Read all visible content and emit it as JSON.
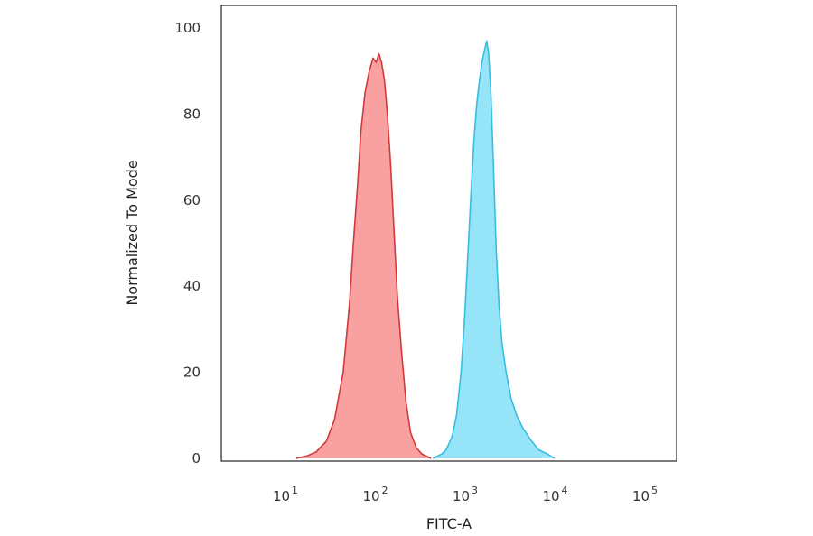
{
  "chart_data": {
    "type": "area",
    "xlabel": "FITC-A",
    "ylabel": "Normalized To Mode",
    "x_scale": "log10",
    "xlim": [
      1,
      100000
    ],
    "ylim": [
      0,
      100
    ],
    "grid": false,
    "legend": "none",
    "x_ticks": [
      {
        "base": "10",
        "exp": "1",
        "value": 10
      },
      {
        "base": "10",
        "exp": "2",
        "value": 100
      },
      {
        "base": "10",
        "exp": "3",
        "value": 1000
      },
      {
        "base": "10",
        "exp": "4",
        "value": 10000
      },
      {
        "base": "10",
        "exp": "5",
        "value": 100000
      }
    ],
    "y_ticks": [
      {
        "label": "0",
        "value": 0
      },
      {
        "label": "20",
        "value": 20
      },
      {
        "label": "40",
        "value": 40
      },
      {
        "label": "60",
        "value": 60
      },
      {
        "label": "80",
        "value": 80
      },
      {
        "label": "100",
        "value": 100
      }
    ],
    "series": [
      {
        "fill": "#f99b9b",
        "stroke": "#d23a3a",
        "points": [
          [
            12,
            0
          ],
          [
            16,
            0.6
          ],
          [
            20,
            1.5
          ],
          [
            26,
            4
          ],
          [
            32,
            9
          ],
          [
            40,
            20
          ],
          [
            47,
            36
          ],
          [
            52,
            50
          ],
          [
            58,
            64
          ],
          [
            63,
            76
          ],
          [
            70,
            85
          ],
          [
            78,
            90
          ],
          [
            86,
            93
          ],
          [
            93,
            92
          ],
          [
            100,
            94
          ],
          [
            107,
            92
          ],
          [
            115,
            88
          ],
          [
            124,
            80
          ],
          [
            135,
            68
          ],
          [
            148,
            52
          ],
          [
            160,
            38
          ],
          [
            178,
            25
          ],
          [
            200,
            13
          ],
          [
            225,
            6
          ],
          [
            260,
            2.5
          ],
          [
            300,
            1
          ],
          [
            380,
            0
          ]
        ]
      },
      {
        "fill": "#8fe3f7",
        "stroke": "#37bde0",
        "points": [
          [
            400,
            0
          ],
          [
            500,
            1
          ],
          [
            560,
            2
          ],
          [
            650,
            5
          ],
          [
            730,
            10
          ],
          [
            820,
            20
          ],
          [
            900,
            33
          ],
          [
            980,
            48
          ],
          [
            1060,
            62
          ],
          [
            1140,
            74
          ],
          [
            1220,
            82
          ],
          [
            1300,
            87
          ],
          [
            1400,
            92
          ],
          [
            1500,
            95
          ],
          [
            1580,
            97
          ],
          [
            1660,
            94
          ],
          [
            1750,
            86
          ],
          [
            1830,
            75
          ],
          [
            1920,
            62
          ],
          [
            2020,
            48
          ],
          [
            2160,
            36
          ],
          [
            2330,
            27
          ],
          [
            2600,
            20
          ],
          [
            2950,
            14
          ],
          [
            3400,
            10
          ],
          [
            4000,
            7
          ],
          [
            5000,
            4
          ],
          [
            6000,
            2
          ],
          [
            7500,
            1
          ],
          [
            9000,
            0
          ]
        ]
      }
    ]
  }
}
